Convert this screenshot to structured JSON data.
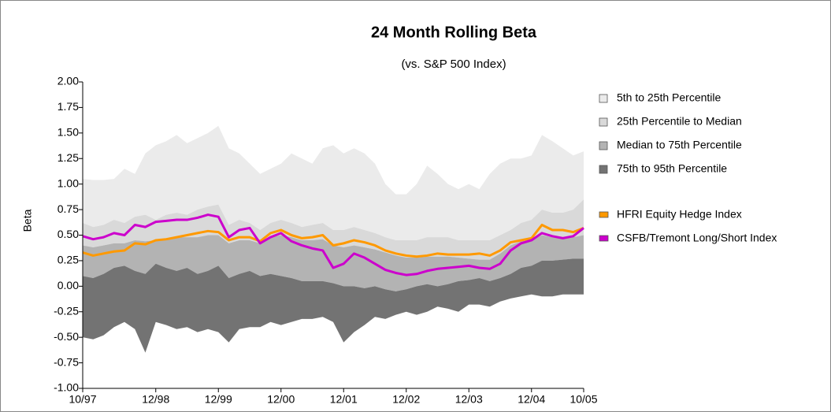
{
  "chart_data": {
    "type": "band-line",
    "title": "24 Month Rolling Beta",
    "subtitle": "(vs. S&P 500 Index)",
    "y_label": "Beta",
    "grid": false,
    "categories": [
      "10/97",
      null,
      null,
      null,
      null,
      null,
      null,
      "12/98",
      null,
      null,
      null,
      null,
      null,
      "12/99",
      null,
      null,
      null,
      null,
      null,
      "12/00",
      null,
      null,
      null,
      null,
      null,
      "12/01",
      null,
      null,
      null,
      null,
      null,
      "12/02",
      null,
      null,
      null,
      null,
      null,
      "12/03",
      null,
      null,
      null,
      null,
      null,
      "12/04",
      null,
      null,
      null,
      null,
      "10/05"
    ],
    "ylim": [
      -1,
      2
    ],
    "yticks": [
      {
        "value": -1,
        "label": "-1.00"
      },
      {
        "value": -0.75,
        "label": "-0.75"
      },
      {
        "value": -0.5,
        "label": "-0.50"
      },
      {
        "value": -0.25,
        "label": "-0.25"
      },
      {
        "value": 0,
        "label": "0.00"
      },
      {
        "value": 0.25,
        "label": "0.25"
      },
      {
        "value": 0.5,
        "label": "0.50"
      },
      {
        "value": 0.75,
        "label": "0.75"
      },
      {
        "value": 1,
        "label": "1.00"
      },
      {
        "value": 1.25,
        "label": "1.25"
      },
      {
        "value": 1.5,
        "label": "1.50"
      },
      {
        "value": 1.75,
        "label": "1.75"
      },
      {
        "value": 2,
        "label": "2.00"
      }
    ],
    "bands": [
      {
        "name": "5th to 25th Percentile",
        "color": "#ebebeb",
        "values": [
          1.05,
          1.04,
          1.04,
          1.05,
          1.15,
          1.1,
          1.3,
          1.38,
          1.42,
          1.48,
          1.4,
          1.45,
          1.5,
          1.57,
          1.35,
          1.3,
          1.2,
          1.1,
          1.15,
          1.2,
          1.3,
          1.25,
          1.2,
          1.35,
          1.38,
          1.3,
          1.35,
          1.3,
          1.2,
          1.0,
          0.9,
          0.9,
          1.0,
          1.18,
          1.1,
          1.0,
          0.95,
          1.0,
          0.95,
          1.1,
          1.2,
          1.25,
          1.25,
          1.28,
          1.48,
          1.42,
          1.35,
          1.28,
          1.32
        ]
      },
      {
        "name": "25th Percentile to Median",
        "color": "#d9d9d9",
        "values": [
          0.62,
          0.58,
          0.6,
          0.65,
          0.62,
          0.68,
          0.7,
          0.65,
          0.7,
          0.72,
          0.7,
          0.75,
          0.78,
          0.8,
          0.6,
          0.65,
          0.62,
          0.55,
          0.62,
          0.65,
          0.62,
          0.58,
          0.6,
          0.62,
          0.55,
          0.55,
          0.58,
          0.55,
          0.52,
          0.48,
          0.45,
          0.45,
          0.45,
          0.48,
          0.48,
          0.48,
          0.45,
          0.45,
          0.45,
          0.45,
          0.5,
          0.55,
          0.62,
          0.65,
          0.75,
          0.72,
          0.72,
          0.75,
          0.85
        ]
      },
      {
        "name": "Median to 75th Percentile",
        "color": "#b3b3b3",
        "values": [
          0.4,
          0.38,
          0.4,
          0.42,
          0.42,
          0.45,
          0.44,
          0.45,
          0.47,
          0.48,
          0.48,
          0.48,
          0.5,
          0.5,
          0.42,
          0.45,
          0.45,
          0.42,
          0.48,
          0.5,
          0.48,
          0.45,
          0.45,
          0.46,
          0.4,
          0.38,
          0.4,
          0.38,
          0.36,
          0.33,
          0.3,
          0.28,
          0.28,
          0.29,
          0.29,
          0.29,
          0.28,
          0.27,
          0.26,
          0.26,
          0.32,
          0.4,
          0.44,
          0.45,
          0.5,
          0.48,
          0.48,
          0.48,
          0.5
        ]
      },
      {
        "name": "75th to 95th Percentile",
        "color": "#737373",
        "values": [
          0.1,
          0.08,
          0.12,
          0.18,
          0.2,
          0.15,
          0.12,
          0.22,
          0.18,
          0.15,
          0.18,
          0.12,
          0.15,
          0.2,
          0.08,
          0.12,
          0.15,
          0.1,
          0.12,
          0.1,
          0.08,
          0.05,
          0.05,
          0.05,
          0.03,
          0.0,
          0.0,
          -0.02,
          0.0,
          -0.03,
          -0.05,
          -0.03,
          0.0,
          0.02,
          0.0,
          0.02,
          0.05,
          0.06,
          0.08,
          0.05,
          0.08,
          0.12,
          0.18,
          0.2,
          0.25,
          0.25,
          0.26,
          0.27,
          0.27
        ],
        "lower": [
          -0.5,
          -0.52,
          -0.48,
          -0.4,
          -0.35,
          -0.42,
          -0.65,
          -0.35,
          -0.38,
          -0.42,
          -0.4,
          -0.45,
          -0.42,
          -0.45,
          -0.55,
          -0.42,
          -0.4,
          -0.4,
          -0.35,
          -0.38,
          -0.35,
          -0.32,
          -0.32,
          -0.3,
          -0.35,
          -0.55,
          -0.45,
          -0.38,
          -0.3,
          -0.32,
          -0.28,
          -0.25,
          -0.28,
          -0.25,
          -0.2,
          -0.22,
          -0.25,
          -0.18,
          -0.18,
          -0.2,
          -0.15,
          -0.12,
          -0.1,
          -0.08,
          -0.1,
          -0.1,
          -0.08,
          -0.08,
          -0.08
        ]
      }
    ],
    "series": [
      {
        "name": "HFRI Equity Hedge Index",
        "color": "#ff9900",
        "values": [
          0.33,
          0.3,
          0.32,
          0.34,
          0.35,
          0.42,
          0.41,
          0.45,
          0.46,
          0.48,
          0.5,
          0.52,
          0.54,
          0.53,
          0.45,
          0.48,
          0.48,
          0.44,
          0.52,
          0.55,
          0.5,
          0.47,
          0.48,
          0.5,
          0.4,
          0.42,
          0.45,
          0.43,
          0.4,
          0.35,
          0.32,
          0.3,
          0.29,
          0.3,
          0.32,
          0.31,
          0.31,
          0.31,
          0.32,
          0.3,
          0.35,
          0.43,
          0.45,
          0.47,
          0.6,
          0.55,
          0.55,
          0.53,
          0.57
        ]
      },
      {
        "name": "CSFB/Tremont Long/Short Index",
        "color": "#cc00cc",
        "values": [
          0.49,
          0.46,
          0.48,
          0.52,
          0.5,
          0.6,
          0.58,
          0.63,
          0.64,
          0.65,
          0.65,
          0.67,
          0.7,
          0.68,
          0.48,
          0.55,
          0.57,
          0.42,
          0.48,
          0.52,
          0.44,
          0.4,
          0.37,
          0.35,
          0.18,
          0.22,
          0.32,
          0.28,
          0.22,
          0.16,
          0.13,
          0.11,
          0.12,
          0.15,
          0.17,
          0.18,
          0.19,
          0.2,
          0.18,
          0.17,
          0.22,
          0.35,
          0.42,
          0.45,
          0.52,
          0.49,
          0.47,
          0.49,
          0.57
        ]
      }
    ]
  }
}
